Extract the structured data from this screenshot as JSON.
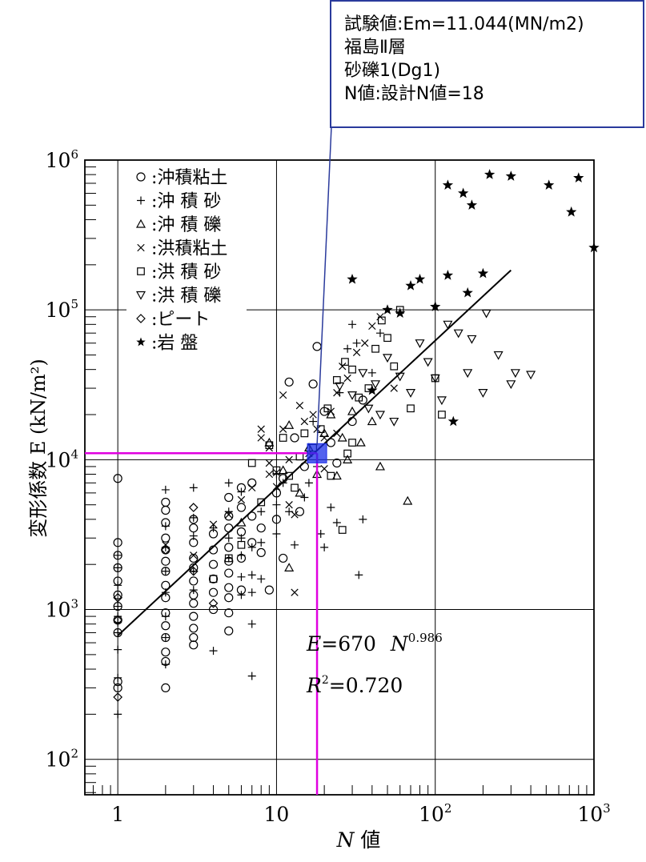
{
  "callout": {
    "lines": [
      "試験値:Em=11.044(MN/m2)",
      "福島Ⅱ層",
      "砂礫1(Dg1)",
      "N値:設計N値=18"
    ],
    "border_color": "#2a3a9c"
  },
  "chart_data": {
    "type": "scatter",
    "title": "",
    "xlabel": "N 値",
    "ylabel": "変形係数 E (kN/m²)",
    "x_scale": "log",
    "y_scale": "log",
    "xlim": [
      0.62,
      1000
    ],
    "ylim": [
      58,
      1000000
    ],
    "x_ticks": [
      {
        "v": 1,
        "base": "1",
        "exp": ""
      },
      {
        "v": 10,
        "base": "10",
        "exp": ""
      },
      {
        "v": 100,
        "base": "10",
        "exp": "2"
      },
      {
        "v": 1000,
        "base": "10",
        "exp": "3"
      }
    ],
    "y_ticks": [
      {
        "v": 100,
        "base": "10",
        "exp": "2"
      },
      {
        "v": 1000,
        "base": "10",
        "exp": "3"
      },
      {
        "v": 10000,
        "base": "10",
        "exp": "4"
      },
      {
        "v": 100000,
        "base": "10",
        "exp": "5"
      },
      {
        "v": 1000000,
        "base": "10",
        "exp": "6"
      }
    ],
    "grid": true,
    "legend_position": "top-left",
    "legend": [
      {
        "marker": "circle",
        "label": "沖積粘土"
      },
      {
        "marker": "plus",
        "label": "沖 積 砂"
      },
      {
        "marker": "triangle-up",
        "label": "沖 積 礫"
      },
      {
        "marker": "cross",
        "label": "洪積粘土"
      },
      {
        "marker": "square",
        "label": "洪 積 砂"
      },
      {
        "marker": "triangle-down",
        "label": "洪 積 礫"
      },
      {
        "marker": "diamond",
        "label": "ピート"
      },
      {
        "marker": "star",
        "label": "岩 盤"
      }
    ],
    "equation": {
      "lhs": "E",
      "eq": "=670",
      "var": "N",
      "exp": "0.986"
    },
    "r_squared": {
      "label": "R",
      "sup": "2",
      "value": "=0.720"
    },
    "fit_line": {
      "x": [
        1,
        300
      ],
      "y": [
        670,
        184000
      ]
    },
    "highlight": {
      "x": 18,
      "y": 11044,
      "line_color": "#e000e0",
      "marker_color": "#1a2ee8"
    },
    "series": [
      {
        "name": "沖積粘土",
        "marker": "circle",
        "points": [
          [
            1,
            7500
          ],
          [
            1,
            2800
          ],
          [
            1,
            2300
          ],
          [
            1,
            1900
          ],
          [
            1,
            1550
          ],
          [
            1,
            1250
          ],
          [
            1,
            1050
          ],
          [
            1,
            850
          ],
          [
            1,
            700
          ],
          [
            1,
            330
          ],
          [
            1,
            300
          ],
          [
            2,
            5200
          ],
          [
            2,
            4600
          ],
          [
            2,
            3800
          ],
          [
            2,
            3000
          ],
          [
            2,
            2500
          ],
          [
            2,
            2100
          ],
          [
            2,
            1800
          ],
          [
            2,
            1450
          ],
          [
            2,
            1200
          ],
          [
            2,
            950
          ],
          [
            2,
            780
          ],
          [
            2,
            650
          ],
          [
            2,
            520
          ],
          [
            2,
            450
          ],
          [
            2,
            300
          ],
          [
            3,
            4000
          ],
          [
            3,
            3500
          ],
          [
            3,
            2800
          ],
          [
            3,
            2200
          ],
          [
            3,
            1900
          ],
          [
            3,
            1550
          ],
          [
            3,
            1250
          ],
          [
            3,
            1100
          ],
          [
            3,
            900
          ],
          [
            3,
            750
          ],
          [
            3,
            650
          ],
          [
            3,
            580
          ],
          [
            4,
            3200
          ],
          [
            4,
            2500
          ],
          [
            4,
            2000
          ],
          [
            4,
            1600
          ],
          [
            4,
            1300
          ],
          [
            4,
            1000
          ],
          [
            5,
            5600
          ],
          [
            5,
            4200
          ],
          [
            5,
            3500
          ],
          [
            5,
            2600
          ],
          [
            5,
            2100
          ],
          [
            5,
            1750
          ],
          [
            5,
            1400
          ],
          [
            5,
            1200
          ],
          [
            5,
            950
          ],
          [
            5,
            720
          ],
          [
            6,
            6500
          ],
          [
            6,
            4800
          ],
          [
            6,
            3300
          ],
          [
            6,
            2200
          ],
          [
            6,
            1350
          ],
          [
            7,
            7000
          ],
          [
            7,
            4200
          ],
          [
            7,
            2800
          ],
          [
            8,
            3500
          ],
          [
            8,
            2400
          ],
          [
            9,
            1350
          ],
          [
            10,
            6000
          ],
          [
            10,
            4000
          ],
          [
            11,
            7500
          ],
          [
            11,
            2200
          ],
          [
            12,
            33000
          ],
          [
            13,
            14000
          ],
          [
            14,
            4500
          ],
          [
            15,
            9000
          ],
          [
            17,
            32000
          ],
          [
            18,
            57000
          ],
          [
            20,
            21000
          ],
          [
            22,
            13000
          ],
          [
            24,
            9500
          ],
          [
            30,
            18000
          ],
          [
            35,
            25000
          ]
        ]
      },
      {
        "name": "沖 積 砂",
        "marker": "plus",
        "points": [
          [
            1,
            2300
          ],
          [
            1,
            1900
          ],
          [
            1,
            1450
          ],
          [
            1,
            1050
          ],
          [
            1,
            900
          ],
          [
            1,
            820
          ],
          [
            1,
            700
          ],
          [
            1,
            540
          ],
          [
            1,
            350
          ],
          [
            1,
            200
          ],
          [
            2,
            6300
          ],
          [
            2,
            3600
          ],
          [
            2,
            2600
          ],
          [
            2,
            1800
          ],
          [
            2,
            1300
          ],
          [
            2,
            900
          ],
          [
            2,
            650
          ],
          [
            2,
            430
          ],
          [
            3,
            6500
          ],
          [
            3,
            4100
          ],
          [
            3,
            3100
          ],
          [
            3,
            1800
          ],
          [
            3,
            1350
          ],
          [
            4,
            3500
          ],
          [
            4,
            530
          ],
          [
            5,
            7000
          ],
          [
            5,
            4500
          ],
          [
            5,
            3000
          ],
          [
            5,
            2200
          ],
          [
            6,
            6100
          ],
          [
            6,
            3000
          ],
          [
            6,
            2300
          ],
          [
            6,
            1650
          ],
          [
            6,
            1250
          ],
          [
            7,
            2600
          ],
          [
            7,
            1700
          ],
          [
            7,
            1300
          ],
          [
            7,
            800
          ],
          [
            7,
            360
          ],
          [
            8,
            4500
          ],
          [
            8,
            2800
          ],
          [
            8,
            1600
          ],
          [
            10,
            8000
          ],
          [
            10,
            5000
          ],
          [
            10,
            3200
          ],
          [
            11,
            7000
          ],
          [
            12,
            4500
          ],
          [
            13,
            2700
          ],
          [
            15,
            5600
          ],
          [
            16,
            7000
          ],
          [
            17,
            18000
          ],
          [
            18,
            9000
          ],
          [
            19,
            3200
          ],
          [
            20,
            2600
          ],
          [
            22,
            4800
          ],
          [
            24,
            3800
          ],
          [
            25,
            28000
          ],
          [
            28,
            55000
          ],
          [
            30,
            80000
          ],
          [
            32,
            60000
          ],
          [
            35,
            4000
          ],
          [
            40,
            38000
          ],
          [
            45,
            70000
          ],
          [
            33,
            1700
          ]
        ]
      },
      {
        "name": "沖 積 礫",
        "marker": "triangle-up",
        "points": [
          [
            6,
            3800
          ],
          [
            9,
            13000
          ],
          [
            11,
            8500
          ],
          [
            12,
            17000
          ],
          [
            12,
            1900
          ],
          [
            14,
            6000
          ],
          [
            16,
            12000
          ],
          [
            18,
            8000
          ],
          [
            20,
            15000
          ],
          [
            22,
            20000
          ],
          [
            24,
            7800
          ],
          [
            26,
            14000
          ],
          [
            28,
            10000
          ],
          [
            30,
            21000
          ],
          [
            34,
            13000
          ],
          [
            40,
            18000
          ],
          [
            45,
            9000
          ],
          [
            67,
            5300
          ]
        ]
      },
      {
        "name": "洪積粘土",
        "marker": "cross",
        "points": [
          [
            2,
            2700
          ],
          [
            3,
            2300
          ],
          [
            4,
            3700
          ],
          [
            5,
            4300
          ],
          [
            6,
            5400
          ],
          [
            7,
            6500
          ],
          [
            8,
            16000
          ],
          [
            8,
            14000
          ],
          [
            9,
            12000
          ],
          [
            9,
            9500
          ],
          [
            9,
            8000
          ],
          [
            10,
            8200
          ],
          [
            10,
            6600
          ],
          [
            11,
            27000
          ],
          [
            11,
            16000
          ],
          [
            12,
            10000
          ],
          [
            13,
            4300
          ],
          [
            13,
            1300
          ],
          [
            14,
            23000
          ],
          [
            15,
            18000
          ],
          [
            16,
            11000
          ],
          [
            17,
            20000
          ],
          [
            18,
            16000
          ],
          [
            20,
            14000
          ],
          [
            22,
            21000
          ],
          [
            24,
            28000
          ],
          [
            26,
            42000
          ],
          [
            28,
            35000
          ],
          [
            32,
            52000
          ],
          [
            36,
            60000
          ],
          [
            40,
            78000
          ],
          [
            45,
            90000
          ],
          [
            55,
            30000
          ],
          [
            24,
            15000
          ],
          [
            20,
            8700
          ],
          [
            12,
            5000
          ]
        ]
      },
      {
        "name": "洪 積 砂",
        "marker": "square",
        "points": [
          [
            4,
            1600
          ],
          [
            5,
            2200
          ],
          [
            6,
            2700
          ],
          [
            7,
            9500
          ],
          [
            8,
            5200
          ],
          [
            9,
            12500
          ],
          [
            10,
            8500
          ],
          [
            11,
            14000
          ],
          [
            12,
            7800
          ],
          [
            13,
            6500
          ],
          [
            14,
            10500
          ],
          [
            15,
            15000
          ],
          [
            17,
            12000
          ],
          [
            19,
            16000
          ],
          [
            21,
            22000
          ],
          [
            24,
            34000
          ],
          [
            27,
            45000
          ],
          [
            30,
            40000
          ],
          [
            22,
            7800
          ],
          [
            26,
            3400
          ],
          [
            30,
            13000
          ],
          [
            33,
            26000
          ],
          [
            38,
            30000
          ],
          [
            42,
            55000
          ],
          [
            46,
            85000
          ],
          [
            50,
            65000
          ],
          [
            60,
            100000
          ],
          [
            70,
            22000
          ],
          [
            100,
            35000
          ],
          [
            110,
            20000
          ],
          [
            55,
            42000
          ],
          [
            28,
            11000
          ]
        ]
      },
      {
        "name": "洪 積 礫",
        "marker": "triangle-down",
        "points": [
          [
            25,
            31000
          ],
          [
            30,
            27000
          ],
          [
            35,
            38000
          ],
          [
            38,
            22000
          ],
          [
            42,
            32000
          ],
          [
            45,
            20000
          ],
          [
            50,
            48000
          ],
          [
            55,
            18000
          ],
          [
            60,
            36000
          ],
          [
            70,
            28000
          ],
          [
            80,
            60000
          ],
          [
            90,
            45000
          ],
          [
            100,
            35000
          ],
          [
            110,
            25000
          ],
          [
            120,
            80000
          ],
          [
            140,
            70000
          ],
          [
            160,
            38000
          ],
          [
            170,
            64000
          ],
          [
            200,
            28000
          ],
          [
            210,
            95000
          ],
          [
            250,
            50000
          ],
          [
            300,
            32000
          ],
          [
            320,
            38000
          ],
          [
            400,
            37000
          ]
        ]
      },
      {
        "name": "ピート",
        "marker": "diamond",
        "points": [
          [
            1,
            1200
          ],
          [
            1,
            850
          ],
          [
            1,
            260
          ],
          [
            2,
            2500
          ],
          [
            3,
            4800
          ],
          [
            3,
            1800
          ],
          [
            4,
            1100
          ]
        ]
      },
      {
        "name": "岩 盤",
        "marker": "star",
        "points": [
          [
            120,
            680000
          ],
          [
            150,
            600000
          ],
          [
            170,
            500000
          ],
          [
            220,
            800000
          ],
          [
            300,
            780000
          ],
          [
            520,
            680000
          ],
          [
            720,
            450000
          ],
          [
            800,
            760000
          ],
          [
            1000,
            260000
          ],
          [
            70,
            145000
          ],
          [
            80,
            160000
          ],
          [
            120,
            170000
          ],
          [
            160,
            130000
          ],
          [
            200,
            175000
          ],
          [
            30,
            160000
          ],
          [
            100,
            105000
          ],
          [
            130,
            18000
          ],
          [
            50,
            100000
          ],
          [
            60,
            95000
          ],
          [
            40,
            29000
          ]
        ]
      }
    ]
  }
}
